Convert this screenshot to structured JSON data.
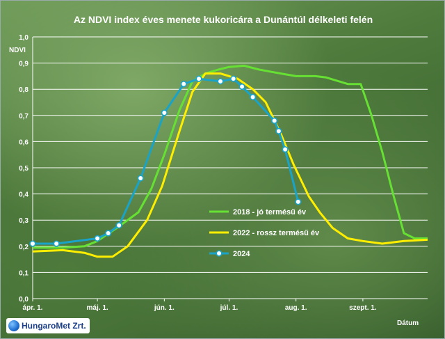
{
  "chart_data": {
    "type": "line",
    "title": "Az NDVI index éves menete kukoricára a Dunántúl délkeleti felén",
    "ylabel": "NDVI",
    "xlabel": "Dátum",
    "ylim": [
      0,
      1.0
    ],
    "yticks": [
      "0,0",
      "0,1",
      "0,2",
      "0,3",
      "0,4",
      "0,5",
      "0,6",
      "0,7",
      "0,8",
      "0,9",
      "1,0"
    ],
    "x_tick_labels": [
      "ápr. 1.",
      "máj. 1.",
      "jún. 1.",
      "júl. 1.",
      "aug. 1.",
      "szept. 1."
    ],
    "x_domain": [
      "2024-04-01",
      "2024-10-01"
    ],
    "grid": true,
    "legend_position": "right",
    "series": [
      {
        "name": "2018 - jó termésű év",
        "color": "#66e033",
        "markers": false,
        "x": [
          "2024-04-01",
          "2024-04-15",
          "2024-04-25",
          "2024-05-01",
          "2024-05-10",
          "2024-05-20",
          "2024-05-26",
          "2024-06-01",
          "2024-06-08",
          "2024-06-14",
          "2024-06-20",
          "2024-06-26",
          "2024-07-01",
          "2024-07-08",
          "2024-07-15",
          "2024-07-25",
          "2024-08-01",
          "2024-08-10",
          "2024-08-15",
          "2024-08-25",
          "2024-08-31",
          "2024-09-05",
          "2024-09-10",
          "2024-09-15",
          "2024-09-20",
          "2024-09-25",
          "2024-10-01"
        ],
        "values": [
          0.195,
          0.195,
          0.2,
          0.22,
          0.27,
          0.33,
          0.42,
          0.55,
          0.72,
          0.83,
          0.86,
          0.875,
          0.885,
          0.89,
          0.875,
          0.86,
          0.85,
          0.85,
          0.845,
          0.82,
          0.82,
          0.7,
          0.56,
          0.4,
          0.25,
          0.23,
          0.23
        ]
      },
      {
        "name": "2022 - rossz termésű év",
        "color": "#ffee00",
        "markers": false,
        "x": [
          "2024-04-01",
          "2024-04-15",
          "2024-04-25",
          "2024-05-01",
          "2024-05-08",
          "2024-05-15",
          "2024-05-24",
          "2024-05-31",
          "2024-06-08",
          "2024-06-14",
          "2024-06-20",
          "2024-06-27",
          "2024-07-05",
          "2024-07-12",
          "2024-07-18",
          "2024-07-25",
          "2024-07-31",
          "2024-08-07",
          "2024-08-12",
          "2024-08-18",
          "2024-08-25",
          "2024-09-01",
          "2024-09-10",
          "2024-09-20",
          "2024-10-01"
        ],
        "values": [
          0.18,
          0.185,
          0.175,
          0.16,
          0.16,
          0.2,
          0.3,
          0.43,
          0.64,
          0.79,
          0.86,
          0.86,
          0.84,
          0.8,
          0.75,
          0.63,
          0.51,
          0.39,
          0.33,
          0.27,
          0.23,
          0.22,
          0.21,
          0.22,
          0.225
        ]
      },
      {
        "name": "2024",
        "color": "#1aa3c9",
        "markers": true,
        "x": [
          "2024-04-01",
          "2024-04-12",
          "2024-05-01",
          "2024-05-06",
          "2024-05-11",
          "2024-05-21",
          "2024-06-01",
          "2024-06-10",
          "2024-06-17",
          "2024-06-27",
          "2024-07-03",
          "2024-07-07",
          "2024-07-12",
          "2024-07-22",
          "2024-07-24",
          "2024-07-27",
          "2024-08-02"
        ],
        "values": [
          0.21,
          0.21,
          0.23,
          0.25,
          0.28,
          0.46,
          0.71,
          0.82,
          0.84,
          0.83,
          0.84,
          0.81,
          0.77,
          0.68,
          0.64,
          0.57,
          0.37
        ]
      }
    ]
  },
  "logo": {
    "text": "HungaroMet Zrt."
  }
}
